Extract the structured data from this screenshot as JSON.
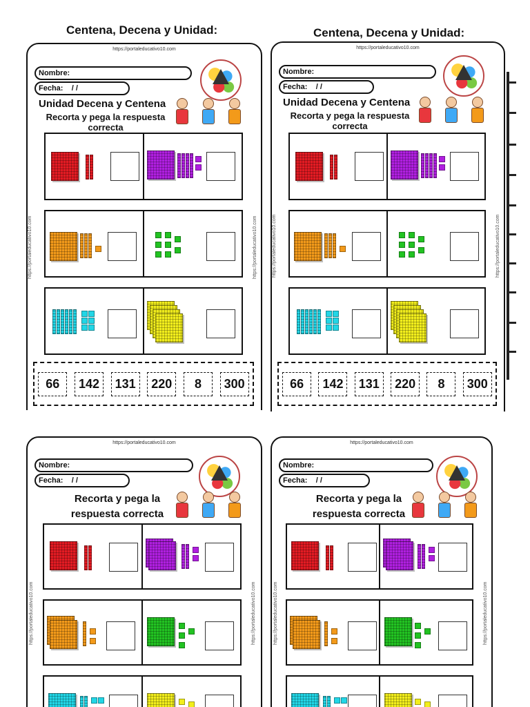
{
  "worksheets": [
    {
      "id": "ws1",
      "heading": "Centena, Decena y Unidad:",
      "url": "https://portaleducativo10.com",
      "side_text": "https://portaleducativo10.com",
      "nombre_label": "Nombre:",
      "fecha_label": "Fecha:",
      "fecha_slashes": "/    /",
      "title_line1": "Unidad Decena y Centena",
      "title_line2": "Recorta y pega la respuesta correcta",
      "answers": [
        "66",
        "142",
        "131",
        "220",
        "8",
        "300"
      ]
    },
    {
      "id": "ws2",
      "heading": "Centena, Decena y Unidad:",
      "url": "https://portaleducativo10.com",
      "side_text": "https://portaleducativo10.com",
      "nombre_label": "Nombre:",
      "fecha_label": "Fecha:",
      "fecha_slashes": "/    /",
      "title_line1": "Unidad Decena y Centena",
      "title_line2": "Recorta y pega la respuesta correcta",
      "answers": [
        "66",
        "142",
        "131",
        "220",
        "8",
        "300"
      ]
    },
    {
      "id": "ws3",
      "url": "https://portaleducativo10.com",
      "side_text": "https://portaleducativo10.com",
      "nombre_label": "Nombre:",
      "fecha_label": "Fecha:",
      "fecha_slashes": "/    /",
      "title_line2": "Recorta y pega la respuesta correcta"
    },
    {
      "id": "ws4",
      "url": "https://portaleducativo10.com",
      "side_text": "https://portaleducativo10.com",
      "nombre_label": "Nombre:",
      "fecha_label": "Fecha:",
      "fecha_slashes": "/    /",
      "title_line2": "Recorta y pega la respuesta correcta"
    }
  ],
  "block_colors": {
    "red": "#e31b23",
    "purple": "#b01fe0",
    "orange": "#f39a1a",
    "green": "#22c322",
    "cyan": "#22d6e6",
    "yellow": "#f2ee1c"
  }
}
